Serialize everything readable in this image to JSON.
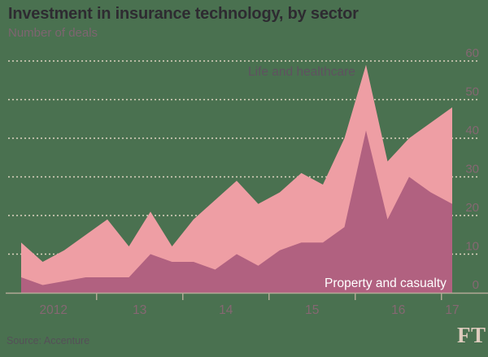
{
  "chart_data": {
    "type": "area",
    "stacked": true,
    "title": "Investment in insurance technology, by sector",
    "subtitle": "Number of deals",
    "x": [
      "2012 Q1",
      "2012 Q2",
      "2012 Q3",
      "2012 Q4",
      "2013 Q1",
      "2013 Q2",
      "2013 Q3",
      "2013 Q4",
      "2014 Q1",
      "2014 Q2",
      "2014 Q3",
      "2014 Q4",
      "2015 Q1",
      "2015 Q2",
      "2015 Q3",
      "2015 Q4",
      "2016 Q1",
      "2016 Q2",
      "2016 Q3",
      "2016 Q4",
      "2017 Q1"
    ],
    "series": [
      {
        "name": "Property and casualty",
        "color": "#b16180",
        "values": [
          4,
          2,
          3,
          4,
          4,
          4,
          10,
          8,
          8,
          6,
          10,
          7,
          11,
          13,
          13,
          17,
          42,
          19,
          30,
          26,
          23
        ]
      },
      {
        "name": "Life and healthcare",
        "color": "#ee9ea4",
        "values": [
          9,
          6,
          8,
          11,
          15,
          8,
          11,
          4,
          11,
          18,
          19,
          16,
          15,
          18,
          15,
          23,
          17,
          15,
          10,
          18,
          25
        ]
      }
    ],
    "x_axis": {
      "tick_labels": [
        "2012",
        "13",
        "14",
        "15",
        "16",
        "17"
      ]
    },
    "y_axis": {
      "ticks": [
        0,
        10,
        20,
        30,
        40,
        50,
        60
      ],
      "position": "right"
    },
    "ylim": [
      0,
      60
    ],
    "grid": "horizontal-dotted",
    "legend": "inline-labels"
  },
  "footer": {
    "source": "Source: Accenture",
    "ft_logo": "FT"
  },
  "colors": {
    "background": "#4a7150",
    "title": "#2e2b31",
    "subtitle": "#7e6470",
    "axis_labels": "#856772",
    "gridline": "#ddd3bf",
    "axis_line": "#b3a996",
    "area_life": "#ee9ea4",
    "area_property": "#b16180",
    "label_life": "#5f5260",
    "label_property": "#ffffff",
    "source": "#555058",
    "ft_logo": "#dfccbe"
  }
}
